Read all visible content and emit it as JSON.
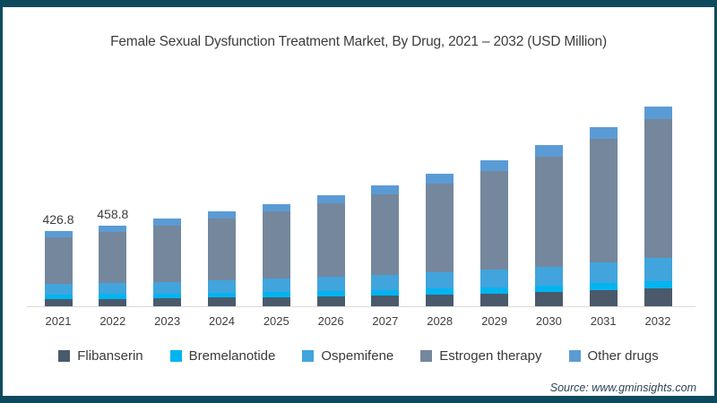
{
  "source": {
    "text": "Source: www.gminsights.com"
  },
  "frame_color": "#0e4a5e",
  "chart_data": {
    "type": "bar",
    "stacked": true,
    "title": "Female Sexual Dysfunction Treatment Market, By Drug, 2021 – 2032 (USD Million)",
    "unit": "USD Million",
    "xlabel": "",
    "ylabel": "",
    "ylim": [
      0,
      1200
    ],
    "grid": false,
    "legend_position": "bottom",
    "categories": [
      "2021",
      "2022",
      "2023",
      "2024",
      "2025",
      "2026",
      "2027",
      "2028",
      "2029",
      "2030",
      "2031",
      "2032"
    ],
    "series": [
      {
        "name": "Flibanserin",
        "color": "#4a5a6b",
        "values": [
          40,
          43,
          46,
          49,
          52,
          56,
          60,
          66,
          72,
          79,
          90,
          102
        ]
      },
      {
        "name": "Bremelanotide",
        "color": "#00b4f0",
        "values": [
          25,
          26,
          27,
          28,
          30,
          31,
          33,
          35,
          37,
          39,
          41,
          42
        ]
      },
      {
        "name": "Ospemifene",
        "color": "#41a4dd",
        "values": [
          60,
          63,
          66,
          70,
          74,
          79,
          85,
          91,
          99,
          107,
          117,
          128
        ]
      },
      {
        "name": "Estrogen therapy",
        "color": "#75879c",
        "values": [
          268,
          291,
          320,
          349,
          380,
          417,
          454,
          501,
          558,
          624,
          699,
          790
        ]
      },
      {
        "name": "Other drugs",
        "color": "#5b9bd5",
        "values": [
          33.8,
          35.8,
          38,
          41,
          44,
          47,
          52,
          56,
          60,
          64,
          67,
          69
        ]
      }
    ],
    "totals": [
      426.8,
      458.8,
      497,
      537,
      580,
      630,
      684,
      749,
      826,
      913,
      1014,
      1131
    ],
    "data_labels": [
      "426.8",
      "458.8",
      null,
      null,
      null,
      null,
      null,
      null,
      null,
      null,
      null,
      null
    ]
  }
}
